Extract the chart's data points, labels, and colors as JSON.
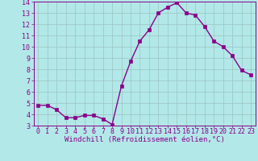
{
  "x": [
    0,
    1,
    2,
    3,
    4,
    5,
    6,
    7,
    8,
    9,
    10,
    11,
    12,
    13,
    14,
    15,
    16,
    17,
    18,
    19,
    20,
    21,
    22,
    23
  ],
  "y": [
    4.8,
    4.8,
    4.4,
    3.7,
    3.7,
    3.9,
    3.9,
    3.6,
    3.1,
    6.5,
    8.7,
    10.5,
    11.5,
    13.0,
    13.5,
    13.9,
    13.0,
    12.8,
    11.8,
    10.5,
    10.0,
    9.2,
    7.9,
    7.5
  ],
  "line_color": "#8b008b",
  "marker_color": "#8b008b",
  "bg_color": "#b2e8e8",
  "grid_color": "#a0c8c8",
  "xlabel": "Windchill (Refroidissement éolien,°C)",
  "xlabel_color": "#8b008b",
  "tick_color": "#8b008b",
  "spine_color": "#8b008b",
  "ylim": [
    3,
    14
  ],
  "xlim": [
    -0.5,
    23.5
  ],
  "yticks": [
    3,
    4,
    5,
    6,
    7,
    8,
    9,
    10,
    11,
    12,
    13,
    14
  ],
  "xticks": [
    0,
    1,
    2,
    3,
    4,
    5,
    6,
    7,
    8,
    9,
    10,
    11,
    12,
    13,
    14,
    15,
    16,
    17,
    18,
    19,
    20,
    21,
    22,
    23
  ],
  "xtick_labels": [
    "0",
    "1",
    "2",
    "3",
    "4",
    "5",
    "6",
    "7",
    "8",
    "9",
    "10",
    "11",
    "12",
    "13",
    "14",
    "15",
    "16",
    "17",
    "18",
    "19",
    "20",
    "21",
    "22",
    "23"
  ],
  "ytick_labels": [
    "3",
    "4",
    "5",
    "6",
    "7",
    "8",
    "9",
    "10",
    "11",
    "12",
    "13",
    "14"
  ],
  "marker_size": 2.5,
  "line_width": 1.0,
  "xlabel_fontsize": 6.5,
  "tick_fontsize": 6.0
}
